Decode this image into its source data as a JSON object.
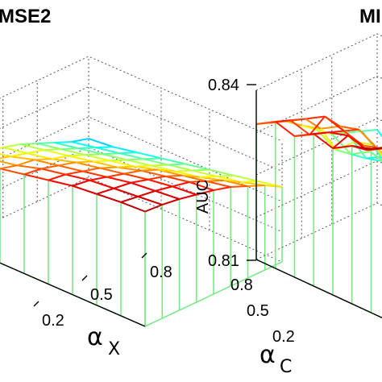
{
  "chart_data": [
    {
      "type": "surface3d",
      "title": "MSE2",
      "xlabel": "α",
      "xlabel_sub": "X",
      "x_ticks": [
        "0.2",
        "0.5",
        "0.8"
      ],
      "x": [
        0.1,
        0.2,
        0.3,
        0.4,
        0.5,
        0.6,
        0.7,
        0.8,
        0.9
      ],
      "y": [
        0.1,
        0.2,
        0.3,
        0.4,
        0.5,
        0.6,
        0.7,
        0.8,
        0.9
      ],
      "z": [
        [
          0.7,
          0.74,
          0.78,
          0.82,
          0.86,
          0.9,
          0.92,
          0.94,
          0.95
        ],
        [
          0.66,
          0.7,
          0.74,
          0.8,
          0.84,
          0.88,
          0.9,
          0.92,
          0.94
        ],
        [
          0.62,
          0.66,
          0.72,
          0.76,
          0.8,
          0.84,
          0.88,
          0.9,
          0.92
        ],
        [
          0.58,
          0.62,
          0.66,
          0.72,
          0.76,
          0.8,
          0.84,
          0.87,
          0.89
        ],
        [
          0.54,
          0.58,
          0.62,
          0.66,
          0.7,
          0.76,
          0.8,
          0.84,
          0.86
        ],
        [
          0.48,
          0.52,
          0.56,
          0.6,
          0.64,
          0.7,
          0.74,
          0.78,
          0.82
        ],
        [
          0.42,
          0.46,
          0.5,
          0.54,
          0.58,
          0.62,
          0.66,
          0.72,
          0.76
        ],
        [
          0.36,
          0.4,
          0.44,
          0.48,
          0.52,
          0.56,
          0.6,
          0.64,
          0.7
        ],
        [
          0.32,
          0.34,
          0.38,
          0.42,
          0.46,
          0.5,
          0.54,
          0.58,
          0.62
        ]
      ],
      "zlim": [
        0,
        1
      ],
      "colormap": "jet",
      "grid": true
    },
    {
      "type": "surface3d",
      "title": "MI",
      "xlabel": "α",
      "xlabel_sub": "C",
      "ylabel": "AUC",
      "x_ticks": [
        "0.8",
        "0.5",
        "0.2"
      ],
      "z_ticks": [
        "0.84",
        "0.81"
      ],
      "zlim": [
        0.81,
        0.84
      ],
      "x": [
        0.1,
        0.2,
        0.3,
        0.4,
        0.5,
        0.6,
        0.7,
        0.8,
        0.9
      ],
      "y": [
        0.1,
        0.2,
        0.3,
        0.4,
        0.5,
        0.6,
        0.7,
        0.8,
        0.9
      ],
      "z": [
        [
          0.834,
          0.836,
          0.835,
          0.837,
          0.836,
          0.838,
          0.839,
          0.841,
          0.842
        ],
        [
          0.833,
          0.835,
          0.834,
          0.836,
          0.837,
          0.836,
          0.838,
          0.84,
          0.841
        ],
        [
          0.832,
          0.834,
          0.836,
          0.835,
          0.834,
          0.835,
          0.837,
          0.838,
          0.84
        ],
        [
          0.83,
          0.831,
          0.833,
          0.834,
          0.832,
          0.831,
          0.833,
          0.836,
          0.838
        ],
        [
          0.828,
          0.826,
          0.829,
          0.83,
          0.827,
          0.826,
          0.829,
          0.833,
          0.836
        ],
        [
          0.826,
          0.824,
          0.826,
          0.825,
          0.822,
          0.821,
          0.824,
          0.829,
          0.833
        ],
        [
          0.825,
          0.822,
          0.823,
          0.82,
          0.818,
          0.816,
          0.82,
          0.826,
          0.83
        ],
        [
          0.824,
          0.821,
          0.82,
          0.817,
          0.815,
          0.812,
          0.817,
          0.824,
          0.828
        ],
        [
          0.823,
          0.82,
          0.818,
          0.815,
          0.813,
          0.81,
          0.815,
          0.822,
          0.827
        ]
      ],
      "colormap": "jet",
      "grid": true
    }
  ]
}
